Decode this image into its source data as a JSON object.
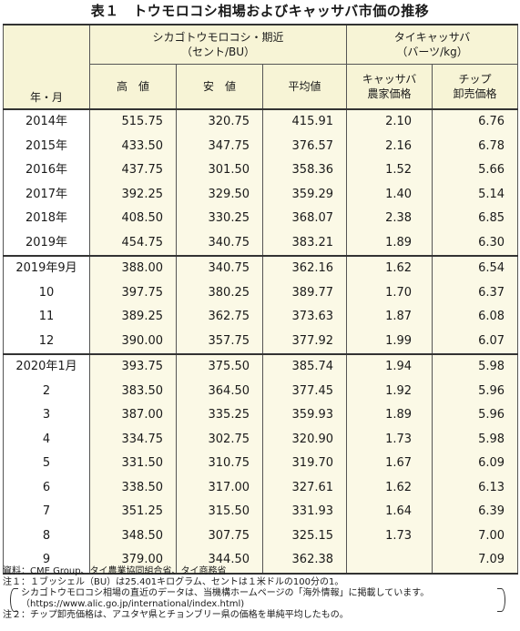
{
  "title": "表１　トウモロコシ相場およびキャッサバ市価の推移",
  "headers": {
    "row_label": "年・月",
    "group1": "シカゴトウモロコシ・期近",
    "group1_unit": "（セント/BU）",
    "group2": "タイキャッサバ",
    "group2_unit": "（バーツ/kg）",
    "col_high": "高　値",
    "col_low": "安　値",
    "col_avg": "平均値",
    "col_farm_1": "キャッサバ",
    "col_farm_2": "農家価格",
    "col_chip_1": "チップ",
    "col_chip_2": "卸売価格"
  },
  "rows": [
    {
      "label": "2014年",
      "high": "515.75",
      "low": "320.75",
      "avg": "415.91",
      "farm": "2.10",
      "chip": "6.76"
    },
    {
      "label": "2015年",
      "high": "433.50",
      "low": "347.75",
      "avg": "376.57",
      "farm": "2.16",
      "chip": "6.78"
    },
    {
      "label": "2016年",
      "high": "437.75",
      "low": "301.50",
      "avg": "358.36",
      "farm": "1.52",
      "chip": "5.66"
    },
    {
      "label": "2017年",
      "high": "392.25",
      "low": "329.50",
      "avg": "359.29",
      "farm": "1.40",
      "chip": "5.14"
    },
    {
      "label": "2018年",
      "high": "408.50",
      "low": "330.25",
      "avg": "368.07",
      "farm": "2.38",
      "chip": "6.85"
    },
    {
      "label": "2019年",
      "high": "454.75",
      "low": "340.75",
      "avg": "383.21",
      "farm": "1.89",
      "chip": "6.30"
    },
    {
      "label": "2019年9月",
      "high": "388.00",
      "low": "340.75",
      "avg": "362.16",
      "farm": "1.62",
      "chip": "6.54"
    },
    {
      "label": "10",
      "high": "397.75",
      "low": "380.25",
      "avg": "389.77",
      "farm": "1.70",
      "chip": "6.37"
    },
    {
      "label": "11",
      "high": "389.25",
      "low": "362.75",
      "avg": "373.63",
      "farm": "1.87",
      "chip": "6.08"
    },
    {
      "label": "12",
      "high": "390.00",
      "low": "357.75",
      "avg": "377.92",
      "farm": "1.99",
      "chip": "6.07"
    },
    {
      "label": "2020年1月",
      "high": "393.75",
      "low": "375.50",
      "avg": "385.74",
      "farm": "1.94",
      "chip": "5.98"
    },
    {
      "label": "2",
      "high": "383.50",
      "low": "364.50",
      "avg": "377.45",
      "farm": "1.92",
      "chip": "5.96"
    },
    {
      "label": "3",
      "high": "387.00",
      "low": "335.25",
      "avg": "359.93",
      "farm": "1.89",
      "chip": "5.96"
    },
    {
      "label": "4",
      "high": "334.75",
      "low": "302.75",
      "avg": "320.90",
      "farm": "1.73",
      "chip": "5.98"
    },
    {
      "label": "5",
      "high": "331.50",
      "low": "310.75",
      "avg": "319.70",
      "farm": "1.67",
      "chip": "6.09"
    },
    {
      "label": "6",
      "high": "338.50",
      "low": "317.00",
      "avg": "327.61",
      "farm": "1.62",
      "chip": "6.13"
    },
    {
      "label": "7",
      "high": "351.25",
      "low": "315.50",
      "avg": "331.93",
      "farm": "1.64",
      "chip": "6.39"
    },
    {
      "label": "8",
      "high": "348.50",
      "low": "307.75",
      "avg": "325.15",
      "farm": "1.73",
      "chip": "7.00"
    },
    {
      "label": "9",
      "high": "379.00",
      "low": "344.50",
      "avg": "362.38",
      "farm": "",
      "chip": "7.09"
    }
  ],
  "notes": {
    "source": "資料：CME Group、タイ農業協同組合省、タイ商務省",
    "note1": "注１：１ブッシェル（BU）は25.401キログラム、セントは１米ドルの100分の1。",
    "note1_paren_1": "シカゴトウモロコシ相場の直近のデータは、当機構ホームページの「海外情報」に掲載しています。",
    "note1_paren_2": "（https://www.alic.go.jp/international/index.html)",
    "note2": "注２：チップ卸売価格は、アユタヤ県とチョンブリー県の価格を単純平均したもの。"
  }
}
